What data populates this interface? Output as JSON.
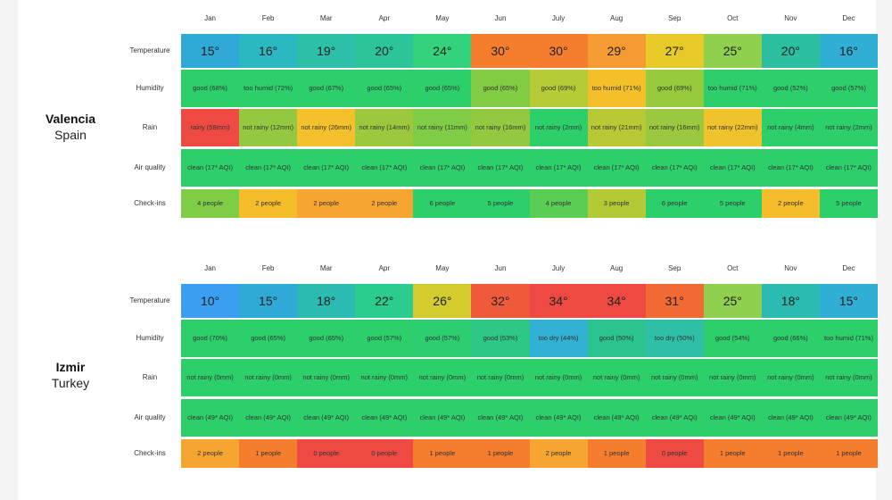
{
  "months": [
    "Jan",
    "Feb",
    "Mar",
    "Apr",
    "May",
    "Jun",
    "July",
    "Aug",
    "Sep",
    "Oct",
    "Nov",
    "Dec"
  ],
  "row_labels": {
    "temperature": "Temperature",
    "humidity": "Humidity",
    "rain": "Rain",
    "air": "Air quality",
    "checkins": "Check-ins"
  },
  "colors": {
    "blue": "#39a7e6",
    "teal": "#2bbfae",
    "cyan_blue": "#35b1d0",
    "green": "#2ccf6a",
    "lime": "#96c93d",
    "yellow": "#f0c327",
    "yellow2": "#dfd13a",
    "orange": "#f5862c",
    "orange_red": "#f1682f",
    "red": "#ee4a43",
    "bright_blue": "#3a9df0",
    "amber": "#f6b43a"
  },
  "cities": [
    {
      "name": "Valencia",
      "country": "Spain",
      "temperature": [
        {
          "v": "15°",
          "c": "#30a9d6"
        },
        {
          "v": "16°",
          "c": "#2bb8c0"
        },
        {
          "v": "19°",
          "c": "#2cc0a8"
        },
        {
          "v": "20°",
          "c": "#2cc59a"
        },
        {
          "v": "24°",
          "c": "#33d37c"
        },
        {
          "v": "30°",
          "c": "#f47d2e"
        },
        {
          "v": "30°",
          "c": "#f47d2e"
        },
        {
          "v": "29°",
          "c": "#f59b34"
        },
        {
          "v": "27°",
          "c": "#e7c928"
        },
        {
          "v": "25°",
          "c": "#8fd04f"
        },
        {
          "v": "20°",
          "c": "#2cbf9f"
        },
        {
          "v": "16°",
          "c": "#30aed4"
        }
      ],
      "humidity": [
        {
          "v": "good (68%)",
          "c": "#2ccf6a"
        },
        {
          "v": "too humid (72%)",
          "c": "#2ccf6a"
        },
        {
          "v": "good (67%)",
          "c": "#2ccf6a"
        },
        {
          "v": "good (65%)",
          "c": "#2ccf6a"
        },
        {
          "v": "good (65%)",
          "c": "#2ccf6a"
        },
        {
          "v": "good (65%)",
          "c": "#82cc44"
        },
        {
          "v": "good (69%)",
          "c": "#b6cb36"
        },
        {
          "v": "too humid (71%)",
          "c": "#f3c02a"
        },
        {
          "v": "good (69%)",
          "c": "#97c93d"
        },
        {
          "v": "too humid (71%)",
          "c": "#2ccf6a"
        },
        {
          "v": "good (52%)",
          "c": "#2ccf6a"
        },
        {
          "v": "good (57%)",
          "c": "#2ccf6a"
        }
      ],
      "rain": [
        {
          "v": "rainy (58mm)",
          "c": "#ee4a43"
        },
        {
          "v": "not rainy (12mm)",
          "c": "#94c840"
        },
        {
          "v": "not rainy (26mm)",
          "c": "#f4c02b"
        },
        {
          "v": "not rainy (14mm)",
          "c": "#9cc83e"
        },
        {
          "v": "not rainy (11mm)",
          "c": "#7fcc46"
        },
        {
          "v": "not rainy (16mm)",
          "c": "#92c940"
        },
        {
          "v": "not rainy (2mm)",
          "c": "#2ccf6a"
        },
        {
          "v": "not rainy (21mm)",
          "c": "#b9c835"
        },
        {
          "v": "not rainy (16mm)",
          "c": "#9ac83f"
        },
        {
          "v": "not rainy (22mm)",
          "c": "#f0c22b"
        },
        {
          "v": "not rainy (4mm)",
          "c": "#2ccf6a"
        },
        {
          "v": "not rainy (2mm)",
          "c": "#2ccf6a"
        }
      ],
      "air": [
        {
          "v": "clean (17* AQI)",
          "c": "#2ccf6a"
        },
        {
          "v": "clean (17* AQI)",
          "c": "#2ccf6a"
        },
        {
          "v": "clean (17* AQI)",
          "c": "#2ccf6a"
        },
        {
          "v": "clean (17* AQI)",
          "c": "#2ccf6a"
        },
        {
          "v": "clean (17* AQI)",
          "c": "#2ccf6a"
        },
        {
          "v": "clean (17* AQI)",
          "c": "#2ccf6a"
        },
        {
          "v": "clean (17* AQI)",
          "c": "#2ccf6a"
        },
        {
          "v": "clean (17* AQI)",
          "c": "#2ccf6a"
        },
        {
          "v": "clean (17* AQI)",
          "c": "#2ccf6a"
        },
        {
          "v": "clean (17* AQI)",
          "c": "#2ccf6a"
        },
        {
          "v": "clean (17* AQI)",
          "c": "#2ccf6a"
        },
        {
          "v": "clean (17* AQI)",
          "c": "#2ccf6a"
        }
      ],
      "checkins": [
        {
          "v": "4 people",
          "c": "#7fcc46"
        },
        {
          "v": "2 people",
          "c": "#f6bd2a"
        },
        {
          "v": "2 people",
          "c": "#f6a531"
        },
        {
          "v": "2 people",
          "c": "#f6a531"
        },
        {
          "v": "6 people",
          "c": "#2ccf6a"
        },
        {
          "v": "5 people",
          "c": "#2ccf6a"
        },
        {
          "v": "4 people",
          "c": "#5acd55"
        },
        {
          "v": "3 people",
          "c": "#b4c936"
        },
        {
          "v": "6 people",
          "c": "#2ccf6a"
        },
        {
          "v": "5 people",
          "c": "#2ccf6a"
        },
        {
          "v": "2 people",
          "c": "#f6bd2a"
        },
        {
          "v": "5 people",
          "c": "#2ccf6a"
        }
      ]
    },
    {
      "name": "Izmir",
      "country": "Turkey",
      "temperature": [
        {
          "v": "10°",
          "c": "#3a9ff0"
        },
        {
          "v": "15°",
          "c": "#30a9d6"
        },
        {
          "v": "18°",
          "c": "#2cbbb1"
        },
        {
          "v": "22°",
          "c": "#2ccb8e"
        },
        {
          "v": "26°",
          "c": "#d2cc2e"
        },
        {
          "v": "32°",
          "c": "#ef5a3a"
        },
        {
          "v": "34°",
          "c": "#ee4a43"
        },
        {
          "v": "34°",
          "c": "#ee4a43"
        },
        {
          "v": "31°",
          "c": "#f26a33"
        },
        {
          "v": "25°",
          "c": "#8fd04f"
        },
        {
          "v": "18°",
          "c": "#2cbbb1"
        },
        {
          "v": "15°",
          "c": "#30aed4"
        }
      ],
      "humidity": [
        {
          "v": "good (70%)",
          "c": "#2ccf6a"
        },
        {
          "v": "good (65%)",
          "c": "#2ccf6a"
        },
        {
          "v": "good (65%)",
          "c": "#2ccf6a"
        },
        {
          "v": "good (57%)",
          "c": "#2ccf6a"
        },
        {
          "v": "good (57%)",
          "c": "#2dcd72"
        },
        {
          "v": "good (53%)",
          "c": "#2dc886"
        },
        {
          "v": "too dry (44%)",
          "c": "#33b1d3"
        },
        {
          "v": "good (50%)",
          "c": "#2cc48e"
        },
        {
          "v": "too dry (50%)",
          "c": "#2fbfa6"
        },
        {
          "v": "good (54%)",
          "c": "#2ccf6a"
        },
        {
          "v": "good (66%)",
          "c": "#2ccf6a"
        },
        {
          "v": "too humid (71%)",
          "c": "#2ccf6a"
        }
      ],
      "rain": [
        {
          "v": "not rainy (0mm)",
          "c": "#2ccf6a"
        },
        {
          "v": "not rainy (0mm)",
          "c": "#2ccf6a"
        },
        {
          "v": "not rainy (0mm)",
          "c": "#2ccf6a"
        },
        {
          "v": "not rainy (0mm)",
          "c": "#2ccf6a"
        },
        {
          "v": "not rainy (0mm)",
          "c": "#2ccf6a"
        },
        {
          "v": "not rainy (0mm)",
          "c": "#2ccf6a"
        },
        {
          "v": "not rainy (0mm)",
          "c": "#2ccf6a"
        },
        {
          "v": "not rainy (0mm)",
          "c": "#2ccf6a"
        },
        {
          "v": "not rainy (0mm)",
          "c": "#2ccf6a"
        },
        {
          "v": "not rainy (0mm)",
          "c": "#2ccf6a"
        },
        {
          "v": "not rainy (0mm)",
          "c": "#2ccf6a"
        },
        {
          "v": "not rainy (0mm)",
          "c": "#2ccf6a"
        }
      ],
      "air": [
        {
          "v": "clean (49* AQI)",
          "c": "#2ccf6a"
        },
        {
          "v": "clean (49* AQI)",
          "c": "#2ccf6a"
        },
        {
          "v": "clean (49* AQI)",
          "c": "#2ccf6a"
        },
        {
          "v": "clean (49* AQI)",
          "c": "#2ccf6a"
        },
        {
          "v": "clean (49* AQI)",
          "c": "#2ccf6a"
        },
        {
          "v": "clean (49* AQI)",
          "c": "#2ccf6a"
        },
        {
          "v": "clean (49* AQI)",
          "c": "#2ccf6a"
        },
        {
          "v": "clean (49* AQI)",
          "c": "#2ccf6a"
        },
        {
          "v": "clean (49* AQI)",
          "c": "#2ccf6a"
        },
        {
          "v": "clean (49* AQI)",
          "c": "#2ccf6a"
        },
        {
          "v": "clean (49* AQI)",
          "c": "#2ccf6a"
        },
        {
          "v": "clean (49* AQI)",
          "c": "#2ccf6a"
        }
      ],
      "checkins": [
        {
          "v": "2 people",
          "c": "#f6a531"
        },
        {
          "v": "1 people",
          "c": "#f47d2e"
        },
        {
          "v": "0 people",
          "c": "#ee4a43"
        },
        {
          "v": "0 people",
          "c": "#ee4a43"
        },
        {
          "v": "1 people",
          "c": "#f47d2e"
        },
        {
          "v": "1 people",
          "c": "#f47d2e"
        },
        {
          "v": "2 people",
          "c": "#f6a531"
        },
        {
          "v": "1 people",
          "c": "#f47d2e"
        },
        {
          "v": "0 people",
          "c": "#ee4a43"
        },
        {
          "v": "1 people",
          "c": "#f47d2e"
        },
        {
          "v": "1 people",
          "c": "#f47d2e"
        },
        {
          "v": "1 people",
          "c": "#f47d2e"
        }
      ]
    }
  ]
}
